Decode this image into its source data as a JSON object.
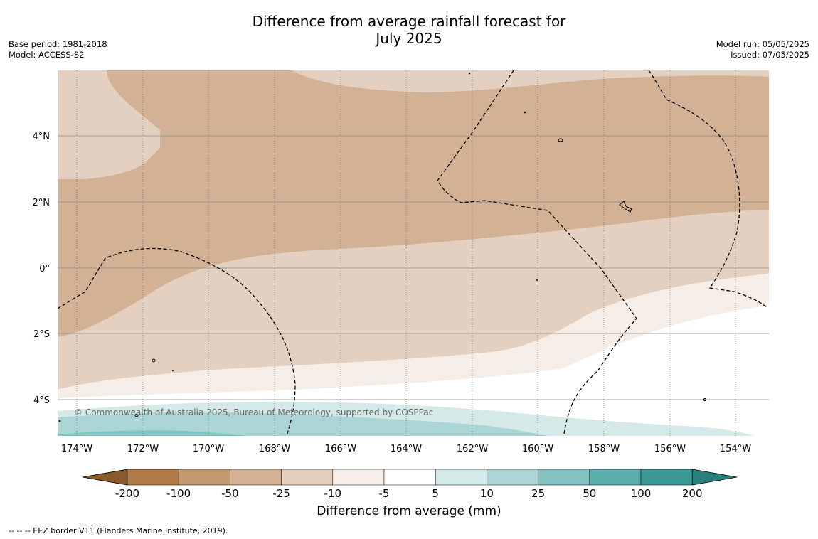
{
  "title_line1": "Difference from average rainfall forecast for",
  "title_line2": "July 2025",
  "base_period": "Base period: 1981-2018",
  "model": "Model: ACCESS-S2",
  "model_run": "Model run: 05/05/2025",
  "issued": "Issued: 07/05/2025",
  "copyright": "© Commonwealth of Australia 2025, Bureau of Meteorology, supported by COSPPac",
  "lat_labels": [
    "4°N",
    "2°N",
    "0°",
    "2°S",
    "4°S"
  ],
  "lon_labels": [
    "174°W",
    "172°W",
    "170°W",
    "168°W",
    "166°W",
    "164°W",
    "162°W",
    "160°W",
    "158°W",
    "156°W",
    "154°W"
  ],
  "colorbar": {
    "label": "Difference from average (mm)",
    "ticks": [
      "-200",
      "-100",
      "-50",
      "-25",
      "-10",
      "-5",
      "5",
      "10",
      "25",
      "50",
      "100",
      "200"
    ],
    "colors": [
      "#8a5a2b",
      "#b07a45",
      "#c49a72",
      "#d2b194",
      "#e3d0c0",
      "#f5ede7",
      "#ffffff",
      "#d4e9e8",
      "#acd6d5",
      "#84c3c1",
      "#5caeab",
      "#3a9895",
      "#2a7f7c"
    ]
  },
  "legend_note": "--  --  -- EEZ border V11 (Flanders Marine Institute, 2019)."
}
